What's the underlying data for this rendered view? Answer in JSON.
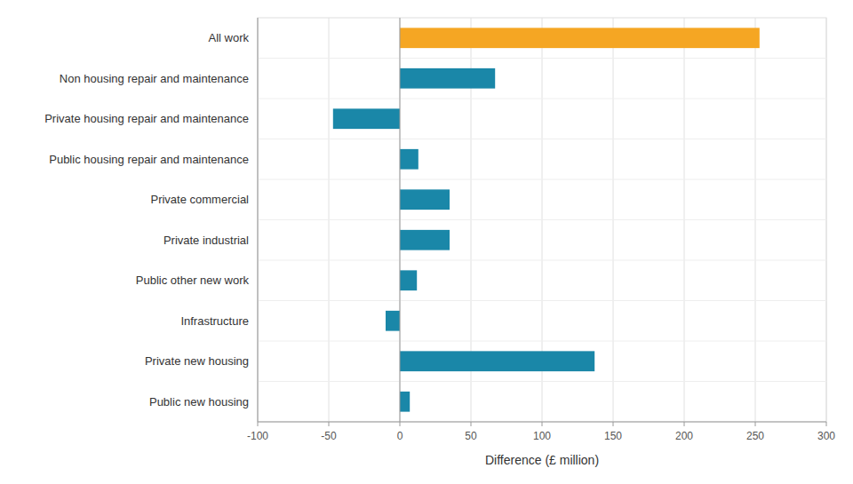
{
  "chart_data": {
    "type": "bar",
    "orientation": "horizontal",
    "categories": [
      "All work",
      "Non housing repair and maintenance",
      "Private housing repair and maintenance",
      "Public housing repair and maintenance",
      "Private commercial",
      "Private industrial",
      "Public other new work",
      "Infrastructure",
      "Private new housing",
      "Public new housing"
    ],
    "values": [
      253,
      67,
      -47,
      13,
      35,
      35,
      12,
      -10,
      137,
      7
    ],
    "colors": [
      "#f5a623",
      "#1a87a8",
      "#1a87a8",
      "#1a87a8",
      "#1a87a8",
      "#1a87a8",
      "#1a87a8",
      "#1a87a8",
      "#1a87a8",
      "#1a87a8"
    ],
    "xlabel": "Difference (£ million)",
    "xlim": [
      -100,
      300
    ],
    "xticks": [
      -100,
      -50,
      0,
      50,
      100,
      150,
      200,
      250,
      300
    ],
    "grid": true
  }
}
